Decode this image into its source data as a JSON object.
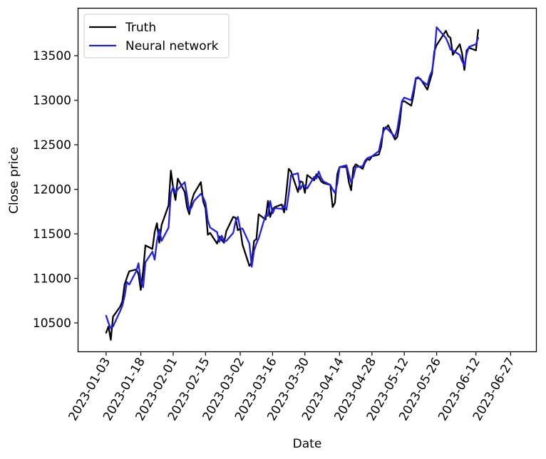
{
  "chart_data": {
    "type": "line",
    "title": "",
    "xlabel": "Date",
    "ylabel": "Close price",
    "xlim": [
      "2022-12-22",
      "2023-07-08"
    ],
    "ylim": [
      10180,
      14030
    ],
    "x_ticks": [
      "2023-01-03",
      "2023-01-18",
      "2023-02-01",
      "2023-02-15",
      "2023-03-02",
      "2023-03-16",
      "2023-03-30",
      "2023-04-14",
      "2023-04-28",
      "2023-05-12",
      "2023-05-26",
      "2023-06-12",
      "2023-06-27"
    ],
    "y_ticks": [
      10500,
      11000,
      11500,
      12000,
      12500,
      13000,
      13500
    ],
    "grid": false,
    "legend_position": "top-left",
    "series": [
      {
        "name": "Truth",
        "color": "#000000",
        "points": [
          [
            "2023-01-03",
            10390
          ],
          [
            "2023-01-04",
            10460
          ],
          [
            "2023-01-05",
            10310
          ],
          [
            "2023-01-06",
            10570
          ],
          [
            "2023-01-09",
            10680
          ],
          [
            "2023-01-10",
            10740
          ],
          [
            "2023-01-11",
            10930
          ],
          [
            "2023-01-12",
            11010
          ],
          [
            "2023-01-13",
            11080
          ],
          [
            "2023-01-16",
            11100
          ],
          [
            "2023-01-17",
            11050
          ],
          [
            "2023-01-18",
            10870
          ],
          [
            "2023-01-19",
            11080
          ],
          [
            "2023-01-20",
            11370
          ],
          [
            "2023-01-23",
            11330
          ],
          [
            "2023-01-24",
            11520
          ],
          [
            "2023-01-25",
            11620
          ],
          [
            "2023-01-26",
            11400
          ],
          [
            "2023-01-27",
            11600
          ],
          [
            "2023-01-30",
            11820
          ],
          [
            "2023-01-31",
            12210
          ],
          [
            "2023-02-01",
            12020
          ],
          [
            "2023-02-02",
            11880
          ],
          [
            "2023-02-03",
            12120
          ],
          [
            "2023-02-06",
            11970
          ],
          [
            "2023-02-07",
            11800
          ],
          [
            "2023-02-08",
            11720
          ],
          [
            "2023-02-09",
            11870
          ],
          [
            "2023-02-10",
            11950
          ],
          [
            "2023-02-13",
            12080
          ],
          [
            "2023-02-14",
            11860
          ],
          [
            "2023-02-15",
            11790
          ],
          [
            "2023-02-16",
            11490
          ],
          [
            "2023-02-17",
            11510
          ],
          [
            "2023-02-20",
            11390
          ],
          [
            "2023-02-21",
            11470
          ],
          [
            "2023-02-22",
            11430
          ],
          [
            "2023-02-23",
            11400
          ],
          [
            "2023-02-24",
            11530
          ],
          [
            "2023-02-27",
            11690
          ],
          [
            "2023-02-28",
            11680
          ],
          [
            "2023-03-01",
            11540
          ],
          [
            "2023-03-02",
            11560
          ],
          [
            "2023-03-03",
            11380
          ],
          [
            "2023-03-06",
            11140
          ],
          [
            "2023-03-07",
            11180
          ],
          [
            "2023-03-08",
            11420
          ],
          [
            "2023-03-09",
            11440
          ],
          [
            "2023-03-10",
            11720
          ],
          [
            "2023-03-13",
            11660
          ],
          [
            "2023-03-14",
            11870
          ],
          [
            "2023-03-15",
            11690
          ],
          [
            "2023-03-16",
            11780
          ],
          [
            "2023-03-17",
            11800
          ],
          [
            "2023-03-20",
            11830
          ],
          [
            "2023-03-21",
            11740
          ],
          [
            "2023-03-22",
            11970
          ],
          [
            "2023-03-23",
            12230
          ],
          [
            "2023-03-24",
            12200
          ],
          [
            "2023-03-27",
            11970
          ],
          [
            "2023-03-28",
            12090
          ],
          [
            "2023-03-29",
            12080
          ],
          [
            "2023-03-30",
            11960
          ],
          [
            "2023-03-31",
            12160
          ],
          [
            "2023-04-03",
            12100
          ],
          [
            "2023-04-04",
            12170
          ],
          [
            "2023-04-05",
            12140
          ],
          [
            "2023-04-06",
            12090
          ],
          [
            "2023-04-07",
            12070
          ],
          [
            "2023-04-10",
            12050
          ],
          [
            "2023-04-11",
            11800
          ],
          [
            "2023-04-12",
            11850
          ],
          [
            "2023-04-13",
            12170
          ],
          [
            "2023-04-14",
            12250
          ],
          [
            "2023-04-17",
            12250
          ],
          [
            "2023-04-18",
            12080
          ],
          [
            "2023-04-19",
            11990
          ],
          [
            "2023-04-20",
            12240
          ],
          [
            "2023-04-21",
            12280
          ],
          [
            "2023-04-24",
            12230
          ],
          [
            "2023-04-25",
            12300
          ],
          [
            "2023-04-26",
            12340
          ],
          [
            "2023-04-27",
            12330
          ],
          [
            "2023-04-28",
            12370
          ],
          [
            "2023-05-01",
            12390
          ],
          [
            "2023-05-02",
            12480
          ],
          [
            "2023-05-03",
            12690
          ],
          [
            "2023-05-04",
            12680
          ],
          [
            "2023-05-05",
            12720
          ],
          [
            "2023-05-08",
            12560
          ],
          [
            "2023-05-09",
            12590
          ],
          [
            "2023-05-10",
            12740
          ],
          [
            "2023-05-11",
            12980
          ],
          [
            "2023-05-12",
            12990
          ],
          [
            "2023-05-15",
            12940
          ],
          [
            "2023-05-16",
            13060
          ],
          [
            "2023-05-17",
            13240
          ],
          [
            "2023-05-18",
            13250
          ],
          [
            "2023-05-19",
            13240
          ],
          [
            "2023-05-22",
            13120
          ],
          [
            "2023-05-23",
            13210
          ],
          [
            "2023-05-24",
            13300
          ],
          [
            "2023-05-25",
            13550
          ],
          [
            "2023-05-26",
            13620
          ],
          [
            "2023-05-30",
            13780
          ],
          [
            "2023-05-31",
            13720
          ],
          [
            "2023-06-01",
            13700
          ],
          [
            "2023-06-02",
            13510
          ],
          [
            "2023-06-05",
            13630
          ],
          [
            "2023-06-06",
            13530
          ],
          [
            "2023-06-07",
            13340
          ],
          [
            "2023-06-08",
            13560
          ],
          [
            "2023-06-09",
            13590
          ],
          [
            "2023-06-12",
            13560
          ],
          [
            "2023-06-13",
            13790
          ]
        ]
      },
      {
        "name": "Neural network",
        "color": "#1f1fe6",
        "points": [
          [
            "2023-01-03",
            10580
          ],
          [
            "2023-01-04",
            10500
          ],
          [
            "2023-01-05",
            10440
          ],
          [
            "2023-01-06",
            10460
          ],
          [
            "2023-01-09",
            10630
          ],
          [
            "2023-01-10",
            10690
          ],
          [
            "2023-01-11",
            10800
          ],
          [
            "2023-01-12",
            10960
          ],
          [
            "2023-01-13",
            10930
          ],
          [
            "2023-01-16",
            11080
          ],
          [
            "2023-01-17",
            11170
          ],
          [
            "2023-01-18",
            10970
          ],
          [
            "2023-01-19",
            10900
          ],
          [
            "2023-01-20",
            11180
          ],
          [
            "2023-01-23",
            11300
          ],
          [
            "2023-01-24",
            11210
          ],
          [
            "2023-01-25",
            11420
          ],
          [
            "2023-01-26",
            11550
          ],
          [
            "2023-01-27",
            11420
          ],
          [
            "2023-01-30",
            11570
          ],
          [
            "2023-01-31",
            11950
          ],
          [
            "2023-02-01",
            12030
          ],
          [
            "2023-02-02",
            11960
          ],
          [
            "2023-02-03",
            12000
          ],
          [
            "2023-02-06",
            12080
          ],
          [
            "2023-02-07",
            11930
          ],
          [
            "2023-02-08",
            11760
          ],
          [
            "2023-02-09",
            11800
          ],
          [
            "2023-02-10",
            11870
          ],
          [
            "2023-02-13",
            11950
          ],
          [
            "2023-02-14",
            11910
          ],
          [
            "2023-02-15",
            11850
          ],
          [
            "2023-02-16",
            11650
          ],
          [
            "2023-02-17",
            11570
          ],
          [
            "2023-02-20",
            11520
          ],
          [
            "2023-02-21",
            11410
          ],
          [
            "2023-02-22",
            11480
          ],
          [
            "2023-02-23",
            11420
          ],
          [
            "2023-02-24",
            11420
          ],
          [
            "2023-02-27",
            11510
          ],
          [
            "2023-02-28",
            11640
          ],
          [
            "2023-03-01",
            11690
          ],
          [
            "2023-03-02",
            11560
          ],
          [
            "2023-03-03",
            11560
          ],
          [
            "2023-03-06",
            11390
          ],
          [
            "2023-03-07",
            11130
          ],
          [
            "2023-03-08",
            11310
          ],
          [
            "2023-03-09",
            11390
          ],
          [
            "2023-03-10",
            11450
          ],
          [
            "2023-03-13",
            11710
          ],
          [
            "2023-03-14",
            11700
          ],
          [
            "2023-03-15",
            11870
          ],
          [
            "2023-03-16",
            11730
          ],
          [
            "2023-03-17",
            11790
          ],
          [
            "2023-03-20",
            11780
          ],
          [
            "2023-03-21",
            11820
          ],
          [
            "2023-03-22",
            11770
          ],
          [
            "2023-03-23",
            11950
          ],
          [
            "2023-03-24",
            12160
          ],
          [
            "2023-03-27",
            12180
          ],
          [
            "2023-03-28",
            12000
          ],
          [
            "2023-03-29",
            12050
          ],
          [
            "2023-03-30",
            12040
          ],
          [
            "2023-03-31",
            12010
          ],
          [
            "2023-04-03",
            12140
          ],
          [
            "2023-04-04",
            12120
          ],
          [
            "2023-04-05",
            12200
          ],
          [
            "2023-04-06",
            12130
          ],
          [
            "2023-04-07",
            12090
          ],
          [
            "2023-04-10",
            12050
          ],
          [
            "2023-04-11",
            12000
          ],
          [
            "2023-04-12",
            11960
          ],
          [
            "2023-04-13",
            12060
          ],
          [
            "2023-04-14",
            12250
          ],
          [
            "2023-04-17",
            12270
          ],
          [
            "2023-04-18",
            12170
          ],
          [
            "2023-04-19",
            12080
          ],
          [
            "2023-04-20",
            12140
          ],
          [
            "2023-04-21",
            12250
          ],
          [
            "2023-04-24",
            12260
          ],
          [
            "2023-04-25",
            12320
          ],
          [
            "2023-04-26",
            12350
          ],
          [
            "2023-04-27",
            12360
          ],
          [
            "2023-04-28",
            12370
          ],
          [
            "2023-05-01",
            12430
          ],
          [
            "2023-05-02",
            12550
          ],
          [
            "2023-05-03",
            12650
          ],
          [
            "2023-05-04",
            12700
          ],
          [
            "2023-05-05",
            12670
          ],
          [
            "2023-05-08",
            12590
          ],
          [
            "2023-05-09",
            12680
          ],
          [
            "2023-05-10",
            12840
          ],
          [
            "2023-05-11",
            12990
          ],
          [
            "2023-05-12",
            13030
          ],
          [
            "2023-05-15",
            13000
          ],
          [
            "2023-05-16",
            13120
          ],
          [
            "2023-05-17",
            13250
          ],
          [
            "2023-05-18",
            13260
          ],
          [
            "2023-05-19",
            13230
          ],
          [
            "2023-05-22",
            13170
          ],
          [
            "2023-05-23",
            13270
          ],
          [
            "2023-05-24",
            13330
          ],
          [
            "2023-05-25",
            13500
          ],
          [
            "2023-05-26",
            13820
          ],
          [
            "2023-05-30",
            13700
          ],
          [
            "2023-05-31",
            13640
          ],
          [
            "2023-06-01",
            13570
          ],
          [
            "2023-06-02",
            13560
          ],
          [
            "2023-06-05",
            13510
          ],
          [
            "2023-06-06",
            13440
          ],
          [
            "2023-06-07",
            13390
          ],
          [
            "2023-06-08",
            13520
          ],
          [
            "2023-06-09",
            13600
          ],
          [
            "2023-06-12",
            13630
          ],
          [
            "2023-06-13",
            13700
          ]
        ]
      }
    ]
  }
}
